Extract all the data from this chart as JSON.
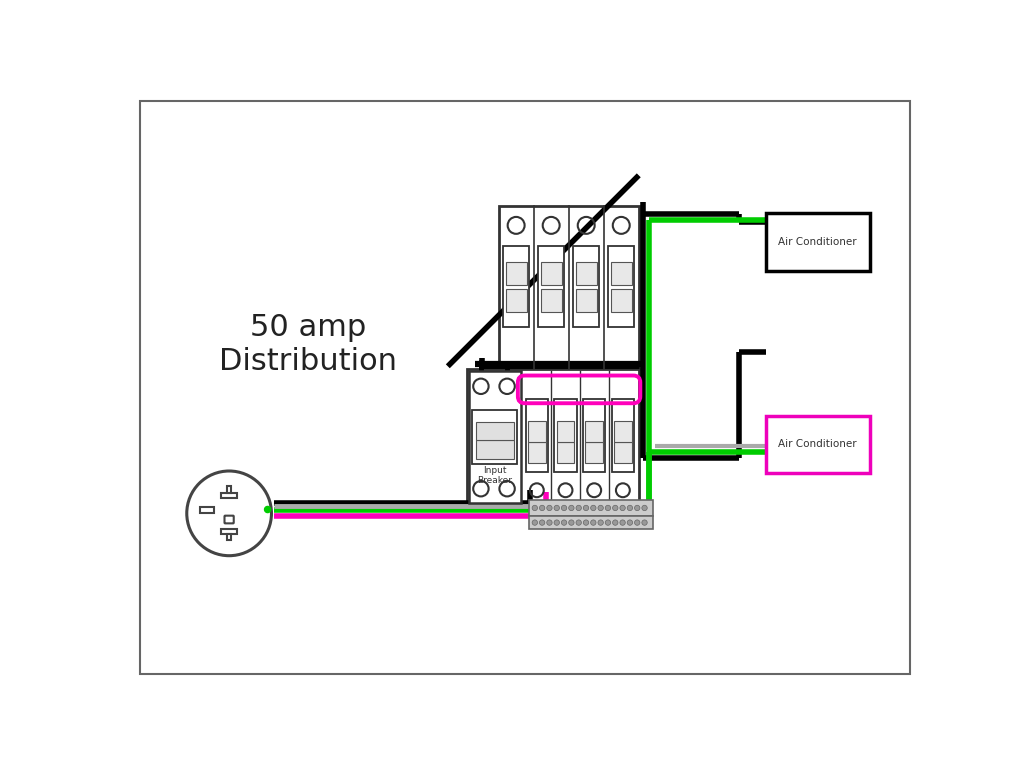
{
  "label_50amp": "50 amp\nDistribution",
  "label_ac1": "Air Conditioner",
  "label_ac2": "Air Conditioner",
  "label_breaker": "Input\nBreaker",
  "bg_color": "#ffffff",
  "border_color": "#666666",
  "wire_black": "#000000",
  "wire_green": "#00cc00",
  "wire_pink": "#ff00bb",
  "wire_gray": "#aaaaaa",
  "ac1_box_color": "#000000",
  "ac2_box_color": "#ee00bb",
  "panel_edge": "#333333",
  "panel_face": "#ffffff"
}
